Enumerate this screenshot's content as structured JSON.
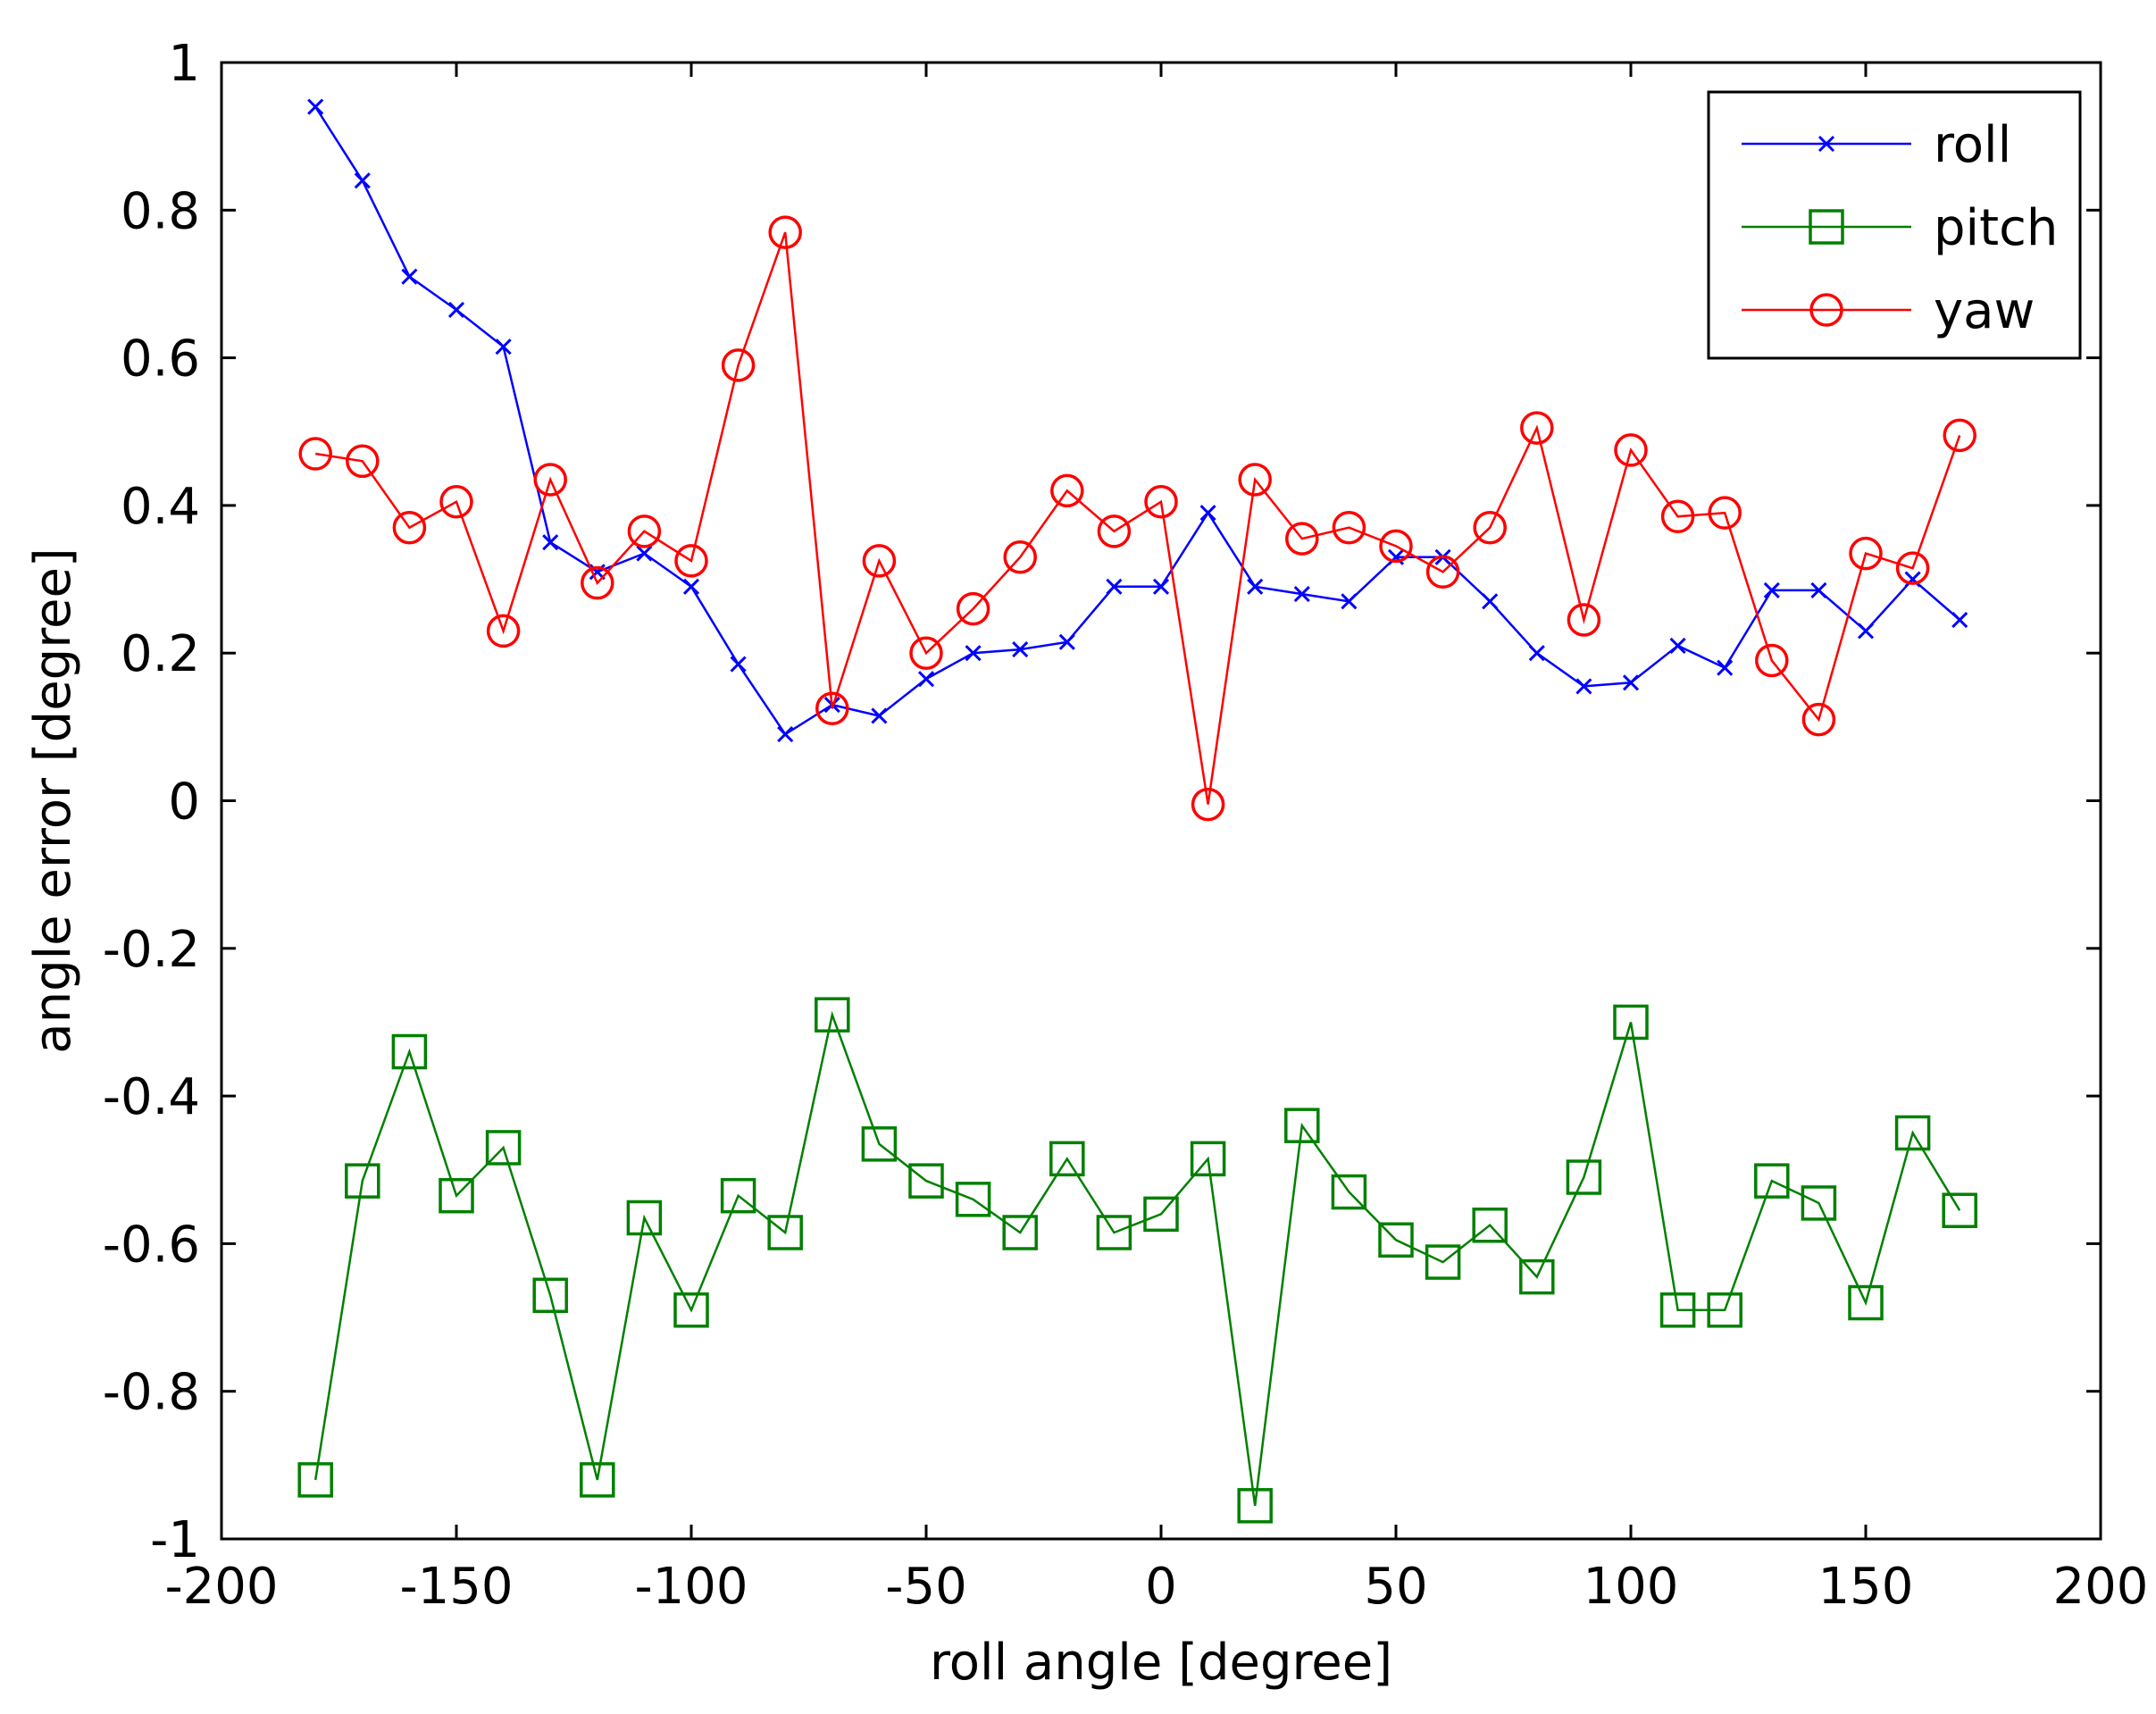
{
  "chart_data": {
    "type": "line",
    "title": "",
    "xlabel": "roll angle [degree]",
    "ylabel": "angle error [degree]",
    "xlim": [
      -200,
      200
    ],
    "ylim": [
      -1,
      1
    ],
    "xticks": [
      -200,
      -150,
      -100,
      -50,
      0,
      50,
      100,
      150,
      200
    ],
    "yticks": [
      -1,
      -0.8,
      -0.6,
      -0.4,
      -0.2,
      0,
      0.2,
      0.4,
      0.6,
      0.8,
      1
    ],
    "xtick_labels": [
      "-200",
      "-150",
      "-100",
      "-50",
      "0",
      "50",
      "100",
      "150",
      "200"
    ],
    "ytick_labels": [
      "-1",
      "-0.8",
      "-0.6",
      "-0.4",
      "-0.2",
      "0",
      "0.2",
      "0.4",
      "0.6",
      "0.8",
      "1"
    ],
    "grid": false,
    "legend_position": "top-right",
    "x": [
      -180,
      -170,
      -160,
      -150,
      -140,
      -130,
      -120,
      -110,
      -100,
      -90,
      -80,
      -70,
      -60,
      -50,
      -40,
      -30,
      -20,
      -10,
      0,
      10,
      20,
      30,
      40,
      50,
      60,
      70,
      80,
      90,
      100,
      110,
      120,
      130,
      140,
      150,
      160,
      170
    ],
    "series": [
      {
        "name": "roll",
        "color": "#0000ff",
        "marker": "x",
        "values": [
          0.94,
          0.84,
          0.71,
          0.665,
          0.615,
          0.35,
          0.31,
          0.335,
          0.29,
          0.185,
          0.09,
          0.13,
          0.115,
          0.165,
          0.2,
          0.205,
          0.215,
          0.29,
          0.29,
          0.39,
          0.29,
          0.28,
          0.27,
          0.33,
          0.33,
          0.27,
          0.2,
          0.155,
          0.16,
          0.21,
          0.18,
          0.285,
          0.285,
          0.23,
          0.3,
          0.245
        ]
      },
      {
        "name": "pitch",
        "color": "#008000",
        "marker": "square",
        "values": [
          -0.92,
          -0.515,
          -0.34,
          -0.535,
          -0.47,
          -0.67,
          -0.92,
          -0.565,
          -0.69,
          -0.535,
          -0.585,
          -0.29,
          -0.465,
          -0.515,
          -0.54,
          -0.585,
          -0.485,
          -0.585,
          -0.56,
          -0.485,
          -0.955,
          -0.44,
          -0.53,
          -0.595,
          -0.625,
          -0.575,
          -0.645,
          -0.51,
          -0.3,
          -0.69,
          -0.69,
          -0.515,
          -0.545,
          -0.68,
          -0.45,
          -0.555
        ]
      },
      {
        "name": "yaw",
        "color": "#ff0000",
        "marker": "circle",
        "values": [
          0.47,
          0.46,
          0.37,
          0.405,
          0.23,
          0.435,
          0.295,
          0.365,
          0.325,
          0.59,
          0.77,
          0.125,
          0.325,
          0.2,
          0.26,
          0.33,
          0.42,
          0.365,
          0.405,
          -0.005,
          0.435,
          0.355,
          0.37,
          0.345,
          0.31,
          0.37,
          0.505,
          0.245,
          0.475,
          0.385,
          0.39,
          0.19,
          0.11,
          0.335,
          0.315,
          0.495
        ]
      }
    ]
  }
}
